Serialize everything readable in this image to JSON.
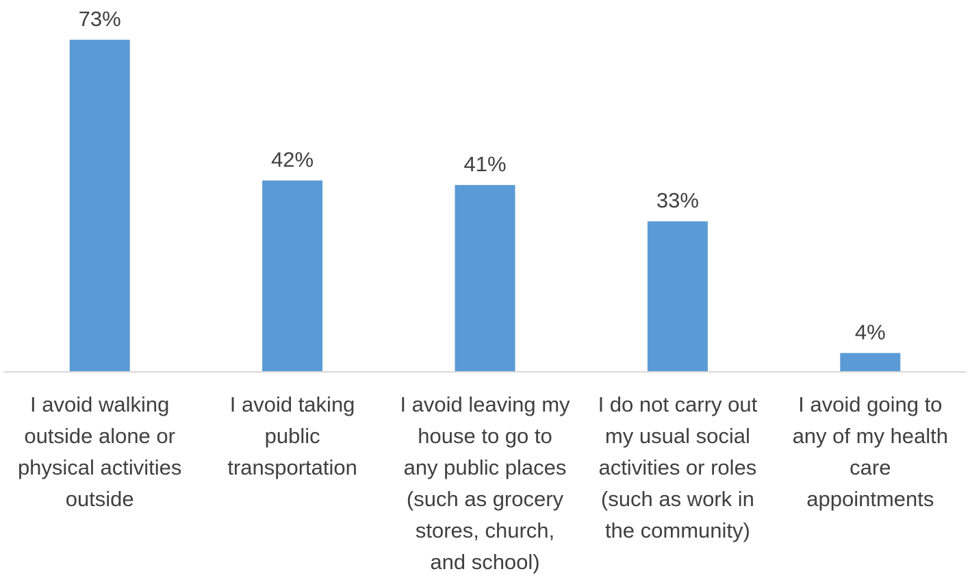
{
  "chart_data": {
    "type": "bar",
    "categories": [
      "I avoid walking outside alone or physical activities outside",
      "I avoid taking public transportation",
      "I avoid leaving my house to go to any public places (such as grocery stores, church, and school)",
      "I do not carry out my usual social activities or roles (such as work in the community)",
      "I avoid going to any of my health care appointments"
    ],
    "category_lines": [
      [
        "I avoid walking",
        "outside alone or",
        "physical activities",
        "outside"
      ],
      [
        "I avoid taking",
        "public",
        "transportation"
      ],
      [
        "I avoid leaving my",
        "house to go to",
        "any public places",
        "(such as grocery",
        "stores, church,",
        "and school)"
      ],
      [
        "I do not carry out",
        "my usual social",
        "activities or roles",
        "(such as work in",
        "the community)"
      ],
      [
        "I avoid going to",
        "any of my health",
        "care",
        "appointments"
      ]
    ],
    "values": [
      73,
      42,
      41,
      33,
      4
    ],
    "data_labels": [
      "73%",
      "42%",
      "41%",
      "33%",
      "4%"
    ],
    "unit": "%",
    "title": "",
    "xlabel": "",
    "ylabel": "",
    "ylim": [
      0,
      80
    ],
    "grid": false,
    "legend": "none",
    "bar_color": "#5B9BD5",
    "axis_color": "#d9d9d9"
  }
}
